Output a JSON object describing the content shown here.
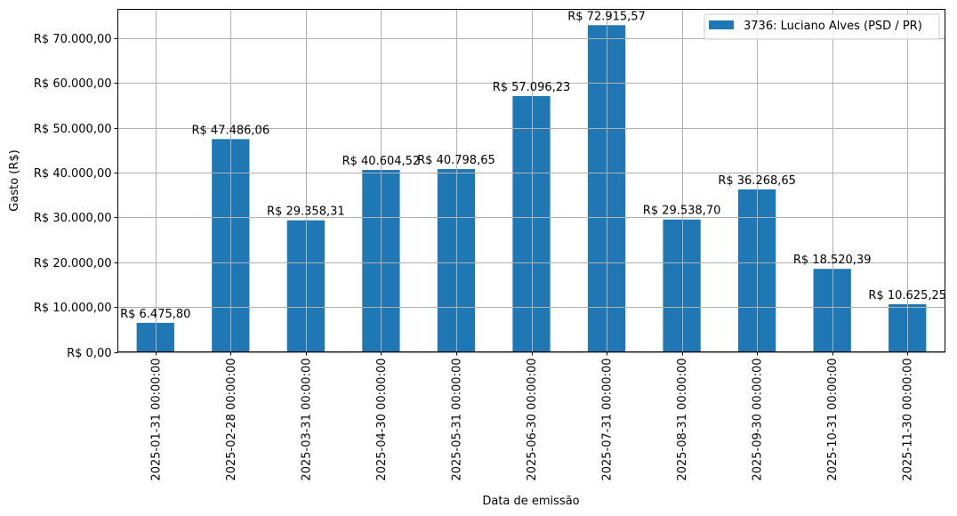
{
  "chart_data": {
    "type": "bar",
    "title": "",
    "xlabel": "Data de emissão",
    "ylabel": "Gasto (R$)",
    "ylim": [
      0,
      76450
    ],
    "grid": true,
    "legend_position": "upper right",
    "bar_color": "#1f77b4",
    "categories": [
      "2025-01-31 00:00:00",
      "2025-02-28 00:00:00",
      "2025-03-31 00:00:00",
      "2025-04-30 00:00:00",
      "2025-05-31 00:00:00",
      "2025-06-30 00:00:00",
      "2025-07-31 00:00:00",
      "2025-08-31 00:00:00",
      "2025-09-30 00:00:00",
      "2025-10-31 00:00:00",
      "2025-11-30 00:00:00"
    ],
    "series": [
      {
        "name": "3736: Luciano Alves (PSD / PR)",
        "values": [
          6475.8,
          47486.06,
          29358.31,
          40604.52,
          40798.65,
          57096.23,
          72915.57,
          29538.7,
          36268.65,
          18520.39,
          10625.25
        ],
        "labels": [
          "R$ 6.475,80",
          "R$ 47.486,06",
          "R$ 29.358,31",
          "R$ 40.604,52",
          "R$ 40.798,65",
          "R$ 57.096,23",
          "R$ 72.915,57",
          "R$ 29.538,70",
          "R$ 36.268,65",
          "R$ 18.520,39",
          "R$ 10.625,25"
        ]
      }
    ],
    "yticks": [
      0,
      10000,
      20000,
      30000,
      40000,
      50000,
      60000,
      70000
    ],
    "ytick_labels": [
      "R$ 0,00",
      "R$ 10.000,00",
      "R$ 20.000,00",
      "R$ 30.000,00",
      "R$ 40.000,00",
      "R$ 50.000,00",
      "R$ 60.000,00",
      "R$ 70.000,00"
    ]
  }
}
